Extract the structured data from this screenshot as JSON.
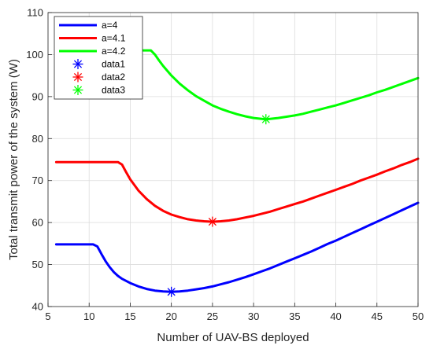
{
  "chart_data": {
    "type": "line",
    "xlabel": "Number of UAV-BS deployed",
    "ylabel": "Total transmit power of the system (W)",
    "xlim": [
      5,
      50
    ],
    "ylim": [
      40,
      110
    ],
    "xticks": [
      5,
      10,
      15,
      20,
      25,
      30,
      35,
      40,
      45,
      50
    ],
    "yticks": [
      40,
      50,
      60,
      70,
      80,
      90,
      100,
      110
    ],
    "grid": true,
    "legend_position": "top-left",
    "series": [
      {
        "name": "a=4",
        "color": "#0000ff",
        "style": "line",
        "x": [
          6,
          7,
          8,
          9,
          10,
          10.5,
          11,
          11.5,
          12,
          12.5,
          13,
          13.5,
          14,
          15,
          16,
          17,
          18,
          19,
          20,
          21,
          22,
          23,
          24,
          25,
          26,
          27,
          28,
          29,
          30,
          31,
          32,
          33,
          34,
          35,
          36,
          37,
          38,
          39,
          40,
          41,
          42,
          43,
          44,
          45,
          46,
          47,
          48,
          49,
          50
        ],
        "y": [
          54.8,
          54.8,
          54.8,
          54.8,
          54.8,
          54.8,
          54.3,
          52.5,
          50.8,
          49.4,
          48.2,
          47.3,
          46.6,
          45.6,
          44.8,
          44.2,
          43.8,
          43.6,
          43.5,
          43.6,
          43.8,
          44.1,
          44.4,
          44.8,
          45.3,
          45.8,
          46.4,
          47.0,
          47.7,
          48.4,
          49.1,
          49.9,
          50.7,
          51.5,
          52.3,
          53.1,
          54.0,
          54.9,
          55.7,
          56.6,
          57.5,
          58.4,
          59.3,
          60.2,
          61.1,
          62.0,
          62.9,
          63.8,
          64.7
        ]
      },
      {
        "name": "a=4.1",
        "color": "#ff0000",
        "style": "line",
        "x": [
          6,
          7,
          8,
          9,
          10,
          11,
          12,
          13,
          13.5,
          14,
          14.5,
          15,
          16,
          17,
          18,
          19,
          20,
          21,
          22,
          23,
          24,
          25,
          26,
          27,
          28,
          29,
          30,
          31,
          32,
          33,
          34,
          35,
          36,
          37,
          38,
          39,
          40,
          41,
          42,
          43,
          44,
          45,
          46,
          47,
          48,
          49,
          50
        ],
        "y": [
          74.4,
          74.4,
          74.4,
          74.4,
          74.4,
          74.4,
          74.4,
          74.4,
          74.4,
          73.8,
          72.0,
          70.3,
          67.6,
          65.6,
          64.0,
          62.8,
          61.9,
          61.3,
          60.8,
          60.5,
          60.3,
          60.2,
          60.3,
          60.5,
          60.8,
          61.2,
          61.6,
          62.1,
          62.6,
          63.2,
          63.8,
          64.4,
          65.0,
          65.7,
          66.4,
          67.1,
          67.8,
          68.5,
          69.2,
          70.0,
          70.7,
          71.4,
          72.2,
          72.9,
          73.7,
          74.4,
          75.2
        ]
      },
      {
        "name": "a=4.2",
        "color": "#00ff00",
        "style": "line",
        "x": [
          6,
          7,
          8,
          9,
          10,
          11,
          12,
          13,
          14,
          15,
          16,
          17,
          17.5,
          18,
          18.5,
          19,
          20,
          21,
          22,
          23,
          24,
          25,
          26,
          27,
          28,
          29,
          30,
          31,
          31.5,
          32,
          33,
          34,
          35,
          36,
          37,
          38,
          39,
          40,
          41,
          42,
          43,
          44,
          45,
          46,
          47,
          48,
          49,
          50
        ],
        "y": [
          101,
          101,
          101,
          101,
          101,
          101,
          101,
          101,
          101,
          101,
          101,
          101,
          101,
          100.0,
          98.6,
          97.3,
          95.0,
          93.1,
          91.5,
          90.1,
          89.0,
          87.9,
          87.1,
          86.4,
          85.8,
          85.3,
          84.9,
          84.7,
          84.6,
          84.7,
          84.9,
          85.2,
          85.5,
          85.9,
          86.4,
          86.9,
          87.4,
          87.9,
          88.5,
          89.1,
          89.7,
          90.3,
          91.0,
          91.6,
          92.3,
          93.0,
          93.7,
          94.4
        ]
      },
      {
        "name": "data1",
        "color": "#0000ff",
        "style": "marker",
        "x": [
          20
        ],
        "y": [
          43.5
        ]
      },
      {
        "name": "data2",
        "color": "#ff0000",
        "style": "marker",
        "x": [
          25
        ],
        "y": [
          60.2
        ]
      },
      {
        "name": "data3",
        "color": "#00ff00",
        "style": "marker",
        "x": [
          31.5
        ],
        "y": [
          84.6
        ]
      }
    ]
  }
}
